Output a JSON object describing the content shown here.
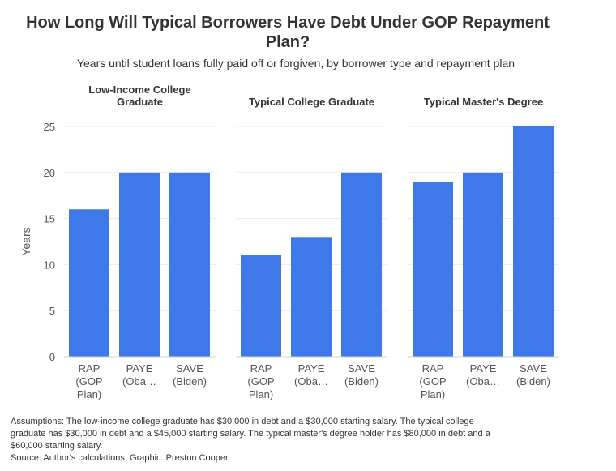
{
  "chart_data": {
    "type": "bar",
    "title": "How Long Will Typical Borrowers Have Debt Under GOP Repayment Plan?",
    "subtitle": "Years until student loans fully paid off or forgiven, by borrower type and repayment plan",
    "ylabel": "Years",
    "ylim": [
      0,
      25
    ],
    "yticks": [
      "0",
      "5",
      "10",
      "15",
      "20",
      "25"
    ],
    "grid": true,
    "bar_color": "#3f78e8",
    "categories": [
      [
        "RAP",
        "(GOP",
        "Plan)"
      ],
      [
        "PAYE",
        "(Oba…"
      ],
      [
        "SAVE",
        "(Biden)"
      ]
    ],
    "facets": [
      {
        "name": "Low-Income College Graduate",
        "title_lines": [
          "Low-Income College",
          "Graduate"
        ],
        "values": [
          16,
          20,
          20
        ]
      },
      {
        "name": "Typical College Graduate",
        "title_lines": [
          "Typical College Graduate"
        ],
        "values": [
          11,
          13,
          20
        ]
      },
      {
        "name": "Typical Master's Degree",
        "title_lines": [
          "Typical Master's Degree"
        ],
        "values": [
          19,
          20,
          25
        ]
      }
    ]
  },
  "footnote": {
    "lines": [
      "Assumptions: The low-income college graduate has $30,000 in debt and a $30,000 starting salary. The typical college",
      "graduate has $30,000 in debt and a $45,000 starting salary. The typical master's degree holder has $80,000 in debt and a",
      "$60,000 starting salary.",
      "Source: Author's calculations. Graphic: Preston Cooper."
    ]
  }
}
